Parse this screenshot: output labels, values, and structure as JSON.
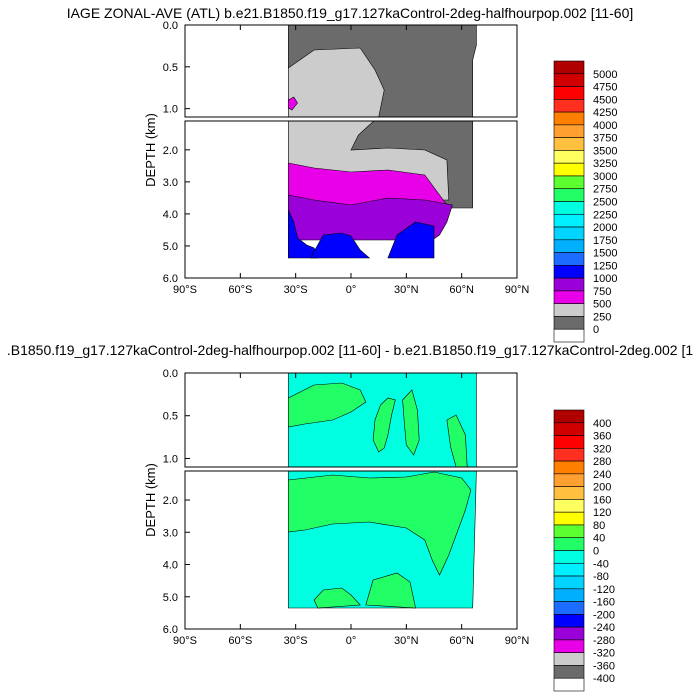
{
  "chart_data": [
    {
      "type": "heatmap",
      "title": "IAGE ZONAL-AVE (ATL) b.e21.B1850.f19_g17.127kaControl-2deg-halfhourpop.002 [11-60]",
      "ylabel": "DEPTH (km)",
      "xlim": [
        -90,
        90
      ],
      "ylim_upper_km": [
        0,
        1.1
      ],
      "ylim_lower_km": [
        1.1,
        6.0
      ],
      "x_ticks": [
        "90°S",
        "60°S",
        "30°S",
        "0°",
        "30°N",
        "60°N",
        "90°N"
      ],
      "y_ticks_upper": [
        "0.0",
        "0.5",
        "1.0"
      ],
      "y_ticks_lower": [
        "2.0",
        "3.0",
        "4.0",
        "5.0",
        "6.0"
      ],
      "colorbar_levels": [
        "0",
        "250",
        "500",
        "750",
        "1000",
        "1250",
        "1500",
        "1750",
        "2000",
        "2250",
        "2500",
        "2750",
        "3000",
        "3250",
        "3500",
        "3750",
        "4000",
        "4250",
        "4500",
        "4750",
        "5000"
      ],
      "colorbar_colors": [
        "#ffffff",
        "#6b6b6b",
        "#cccccc",
        "#e800e8",
        "#9a00d8",
        "#0000ff",
        "#1c6cff",
        "#00b0ff",
        "#00d4ff",
        "#00f0ff",
        "#00ffe0",
        "#22ff66",
        "#5cff30",
        "#ffff00",
        "#ffff60",
        "#ffc040",
        "#ffa030",
        "#ff8000",
        "#ff3020",
        "#ff0000",
        "#d00000",
        "#b00000"
      ]
    },
    {
      "type": "heatmap",
      "title": ".B1850.f19_g17.127kaControl-2deg-halfhourpop.002 [11-60] - b.e21.B1850.f19_g17.127kaControl-2deg.002 [1",
      "ylabel": "DEPTH (km)",
      "xlim": [
        -90,
        90
      ],
      "ylim_upper_km": [
        0,
        1.1
      ],
      "ylim_lower_km": [
        1.1,
        6.0
      ],
      "x_ticks": [
        "90°S",
        "60°S",
        "30°S",
        "0°",
        "30°N",
        "60°N",
        "90°N"
      ],
      "y_ticks_upper": [
        "0.0",
        "0.5",
        "1.0"
      ],
      "y_ticks_lower": [
        "2.0",
        "3.0",
        "4.0",
        "5.0",
        "6.0"
      ],
      "colorbar_levels": [
        "-400",
        "-360",
        "-320",
        "-280",
        "-240",
        "-200",
        "-160",
        "-120",
        "-80",
        "-40",
        "0",
        "40",
        "80",
        "120",
        "160",
        "200",
        "240",
        "280",
        "320",
        "360",
        "400"
      ],
      "colorbar_colors": [
        "#ffffff",
        "#6b6b6b",
        "#cccccc",
        "#e800e8",
        "#9a00d8",
        "#0000ff",
        "#1c6cff",
        "#00b0ff",
        "#00d4ff",
        "#00f0ff",
        "#00ffe0",
        "#22ff66",
        "#5cff30",
        "#ffff00",
        "#ffff60",
        "#ffc040",
        "#ffa030",
        "#ff8000",
        "#ff3020",
        "#ff0000",
        "#d00000",
        "#b00000"
      ]
    }
  ]
}
